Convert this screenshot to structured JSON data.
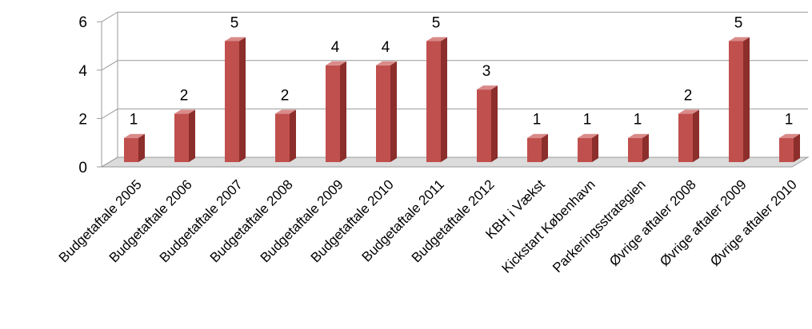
{
  "chart_data": {
    "type": "bar",
    "title": "",
    "xlabel": "",
    "ylabel": "",
    "ylim": [
      0,
      6
    ],
    "yticks": [
      0,
      2,
      4,
      6
    ],
    "grid": true,
    "legend": "none",
    "bar_color": "#c0504d",
    "categories": [
      "Budgetaftale 2005",
      "Budgetaftale 2006",
      "Budgetaftale 2007",
      "Budgetaftale 2008",
      "Budgetaftale 2009",
      "Budgetaftale 2010",
      "Budgetaftale 2011",
      "Budgetaftale 2012",
      "KBH i Vækst",
      "Kickstart København",
      "Parkeringsstrategien",
      "Øvrige aftaler 2008",
      "Øvrige aftaler 2009",
      "Øvrige aftaler 2010"
    ],
    "values": [
      1,
      2,
      5,
      2,
      4,
      4,
      5,
      3,
      1,
      1,
      1,
      2,
      5,
      1
    ]
  }
}
